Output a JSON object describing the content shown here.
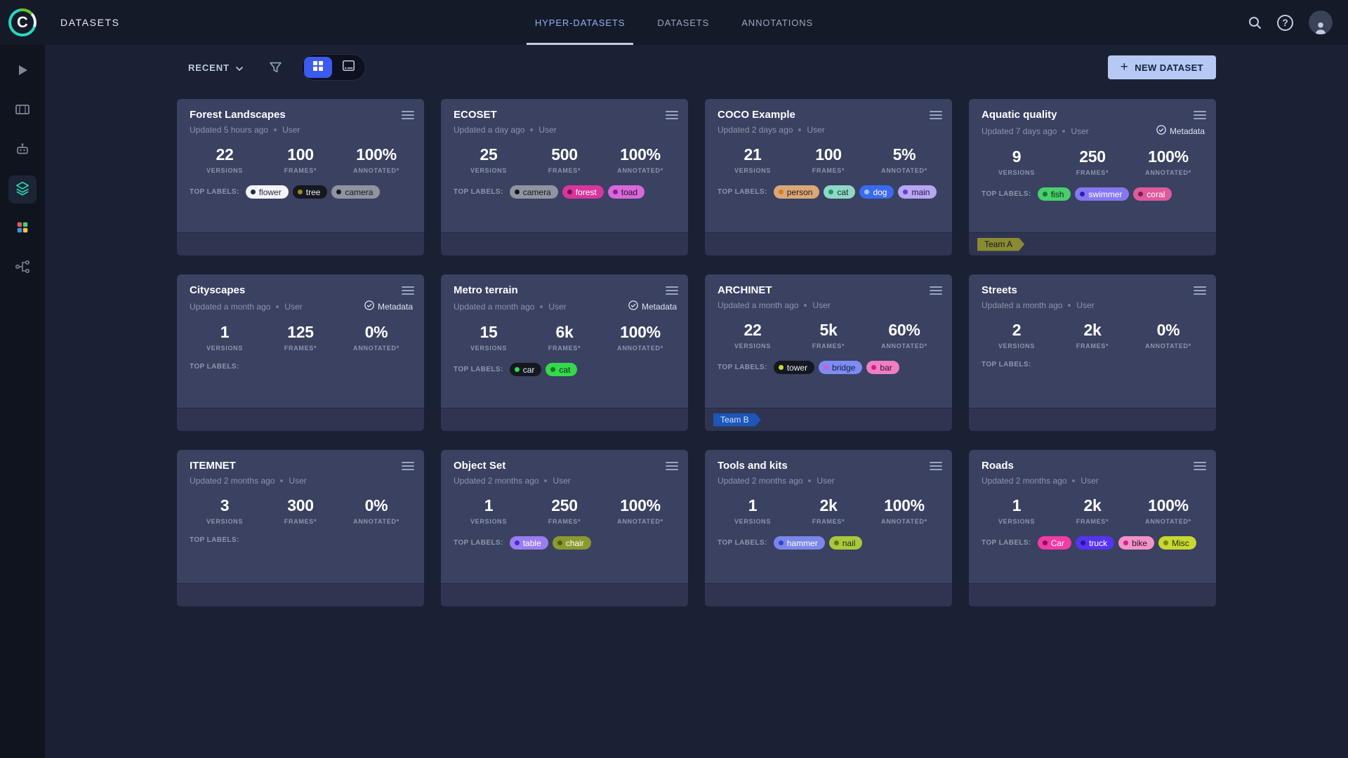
{
  "header": {
    "section_title": "DATASETS",
    "tabs": [
      {
        "label": "HYPER-DATASETS",
        "active": true
      },
      {
        "label": "DATASETS",
        "active": false
      },
      {
        "label": "ANNOTATIONS",
        "active": false
      }
    ]
  },
  "toolbar": {
    "sort": "RECENT",
    "new_dataset": "NEW DATASET"
  },
  "labels_prefix": "TOP LABELS:",
  "metadata_badge": "Metadata",
  "stats_labels": {
    "versions": "VERSIONS",
    "frames": "FRAMES*",
    "annotated": "ANNOTATED*"
  },
  "colors": {
    "accent_blue": "#3c5af0",
    "active_tab": "#8fb3f2",
    "new_dataset_bg": "#b6c9f4",
    "active_nav_teal": "#2bd9bd",
    "card_bg": "#3a4161",
    "page_bg": "#1b2134"
  },
  "icons": {
    "header": [
      "search-icon",
      "help-icon",
      "user-avatar-icon"
    ],
    "sidebar": [
      "play-icon",
      "board-icon",
      "robot-icon",
      "layers-icon",
      "palette-icon",
      "pipelines-icon"
    ],
    "toolbar": [
      "caret-down-icon",
      "filter-icon",
      "grid-view-icon",
      "card-view-icon",
      "plus-icon"
    ],
    "card": [
      "menu-icon",
      "check-circle-icon"
    ]
  },
  "cards": [
    {
      "title": "Forest Landscapes",
      "updated": "Updated 5 hours ago",
      "user": "User",
      "metadata": false,
      "versions": "22",
      "frames": "100",
      "annotated": "100%",
      "labels": [
        {
          "text": "flower",
          "bg": "#f2f4f8",
          "fg": "#252b42",
          "dot": "#252b42"
        },
        {
          "text": "tree",
          "bg": "#15181f",
          "fg": "#e8ecf5",
          "dot": "#9a8a20"
        },
        {
          "text": "camera",
          "bg": "#8f95a0",
          "fg": "#15181f",
          "dot": "#15181f"
        }
      ],
      "ribbon": null
    },
    {
      "title": "ECOSET",
      "updated": "Updated a day ago",
      "user": "User",
      "metadata": false,
      "versions": "25",
      "frames": "500",
      "annotated": "100%",
      "labels": [
        {
          "text": "camera",
          "bg": "#8f95a0",
          "fg": "#15181f",
          "dot": "#15181f"
        },
        {
          "text": "forest",
          "bg": "#d8359e",
          "fg": "#ffffff",
          "dot": "#7a1055"
        },
        {
          "text": "toad",
          "bg": "#d968d9",
          "fg": "#2a1030",
          "dot": "#8a1f96"
        }
      ],
      "ribbon": null
    },
    {
      "title": "COCO Example",
      "updated": "Updated 2 days ago",
      "user": "User",
      "metadata": false,
      "versions": "21",
      "frames": "100",
      "annotated": "5%",
      "labels": [
        {
          "text": "person",
          "bg": "#d9a87a",
          "fg": "#2a1c0a",
          "dot": "#e0761c"
        },
        {
          "text": "cat",
          "bg": "#8fd8c8",
          "fg": "#0f2a22",
          "dot": "#1f9a5f"
        },
        {
          "text": "dog",
          "bg": "#3a6af0",
          "fg": "#ffffff",
          "dot": "#9fc3ff"
        },
        {
          "text": "main",
          "bg": "#b7a6f2",
          "fg": "#241a4a",
          "dot": "#5f3fe0"
        }
      ],
      "ribbon": null
    },
    {
      "title": "Aquatic quality",
      "updated": "Updated 7 days ago",
      "user": "User",
      "metadata": true,
      "versions": "9",
      "frames": "250",
      "annotated": "100%",
      "labels": [
        {
          "text": "fish",
          "bg": "#49cf6b",
          "fg": "#0c2a14",
          "dot": "#127a36"
        },
        {
          "text": "swimmer",
          "bg": "#8578ef",
          "fg": "#ffffff",
          "dot": "#2e1fb8"
        },
        {
          "text": "coral",
          "bg": "#df5a9b",
          "fg": "#ffffff",
          "dot": "#8a1653"
        }
      ],
      "ribbon": {
        "text": "Team A",
        "bg": "#8a8a33",
        "fg": "#15181f"
      }
    },
    {
      "title": "Cityscapes",
      "updated": "Updated a month ago",
      "user": "User",
      "metadata": true,
      "versions": "1",
      "frames": "125",
      "annotated": "0%",
      "labels": [],
      "ribbon": null
    },
    {
      "title": "Metro terrain",
      "updated": "Updated a month ago",
      "user": "User",
      "metadata": true,
      "versions": "15",
      "frames": "6k",
      "annotated": "100%",
      "labels": [
        {
          "text": "car",
          "bg": "#15181f",
          "fg": "#e8ecf5",
          "dot": "#35d94d"
        },
        {
          "text": "cat",
          "bg": "#35d94d",
          "fg": "#0c2a12",
          "dot": "#117a28"
        }
      ],
      "ribbon": null
    },
    {
      "title": "ARCHINET",
      "updated": "Updated a month ago",
      "user": "User",
      "metadata": false,
      "versions": "22",
      "frames": "5k",
      "annotated": "60%",
      "labels": [
        {
          "text": "tower",
          "bg": "#15181f",
          "fg": "#e8ecf5",
          "dot": "#c6dc2e"
        },
        {
          "text": "bridge",
          "bg": "#7d8cf2",
          "fg": "#141a3a",
          "dot": "#e055c5"
        },
        {
          "text": "bar",
          "bg": "#ef7ec2",
          "fg": "#3a0f28",
          "dot": "#d01f8a"
        }
      ],
      "ribbon": {
        "text": "Team B",
        "bg": "#1d55b8",
        "fg": "#d8e6ff"
      }
    },
    {
      "title": "Streets",
      "updated": "Updated a month ago",
      "user": "User",
      "metadata": false,
      "versions": "2",
      "frames": "2k",
      "annotated": "0%",
      "labels": [],
      "ribbon": null
    },
    {
      "title": "ITEMNET",
      "updated": "Updated 2 months ago",
      "user": "User",
      "metadata": false,
      "versions": "3",
      "frames": "300",
      "annotated": "0%",
      "labels": [],
      "ribbon": null
    },
    {
      "title": "Object Set",
      "updated": "Updated 2 months ago",
      "user": "User",
      "metadata": false,
      "versions": "1",
      "frames": "250",
      "annotated": "100%",
      "labels": [
        {
          "text": "table",
          "bg": "#9a7df0",
          "fg": "#ffffff",
          "dot": "#4f25d8"
        },
        {
          "text": "chair",
          "bg": "#8a9a2e",
          "fg": "#ffffff",
          "dot": "#4f5c12"
        }
      ],
      "ribbon": null
    },
    {
      "title": "Tools and kits",
      "updated": "Updated 2 months ago",
      "user": "User",
      "metadata": false,
      "versions": "1",
      "frames": "2k",
      "annotated": "100%",
      "labels": [
        {
          "text": "hammer",
          "bg": "#7a87e8",
          "fg": "#ffffff",
          "dot": "#3246c8"
        },
        {
          "text": "nail",
          "bg": "#a9c93c",
          "fg": "#22300a",
          "dot": "#5f7a16"
        }
      ],
      "ribbon": null
    },
    {
      "title": "Roads",
      "updated": "Updated 2 months ago",
      "user": "User",
      "metadata": false,
      "versions": "1",
      "frames": "2k",
      "annotated": "100%",
      "labels": [
        {
          "text": "Car",
          "bg": "#f23ba6",
          "fg": "#ffffff",
          "dot": "#8a0e56"
        },
        {
          "text": "truck",
          "bg": "#5633ef",
          "fg": "#ffffff",
          "dot": "#2a14a0"
        },
        {
          "text": "bike",
          "bg": "#f293c8",
          "fg": "#3a0f26",
          "dot": "#d01f8a"
        },
        {
          "text": "Misc",
          "bg": "#c6d831",
          "fg": "#2a300a",
          "dot": "#7a8a14"
        }
      ],
      "ribbon": null
    }
  ]
}
